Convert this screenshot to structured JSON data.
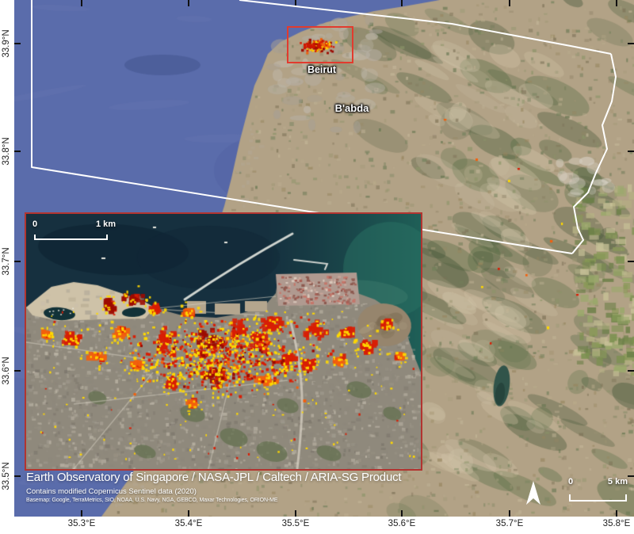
{
  "axes": {
    "lat_labels": [
      "33.9°N",
      "33.8°N",
      "33.7°N",
      "33.6°N",
      "33.5°N"
    ],
    "lon_labels": [
      "35.3°E",
      "35.4°E",
      "35.5°E",
      "35.6°E",
      "35.7°E",
      "35.8°E"
    ]
  },
  "places": [
    {
      "name": "Beirut"
    },
    {
      "name": "B'abda"
    }
  ],
  "inset_scalebar": {
    "zero": "0",
    "distance": "1 km"
  },
  "main_scalebar": {
    "zero": "0",
    "distance": "5 km"
  },
  "caption": {
    "title": "Earth Observatory of Singapore / NASA-JPL / Caltech / ARIA-SG Product",
    "credit1": "Contains modified Copernicus Sentinel data (2020)",
    "credit2": "Basemap: Google, TerraMetrics, SIO, NOAA, U.S. Navy, NGA, GEBCO, Maxar Technologies, ORION-ME"
  },
  "colors": {
    "sea": "#5a6cab",
    "damage_red": "#d81e05",
    "damage_dark_red": "#9c0a00",
    "damage_orange": "#f2600d",
    "damage_yellow": "#ffd800",
    "footprint_outline": "#ffffff",
    "aoi_box_red": "#e23b2e",
    "inset_border_red": "#b23430"
  }
}
